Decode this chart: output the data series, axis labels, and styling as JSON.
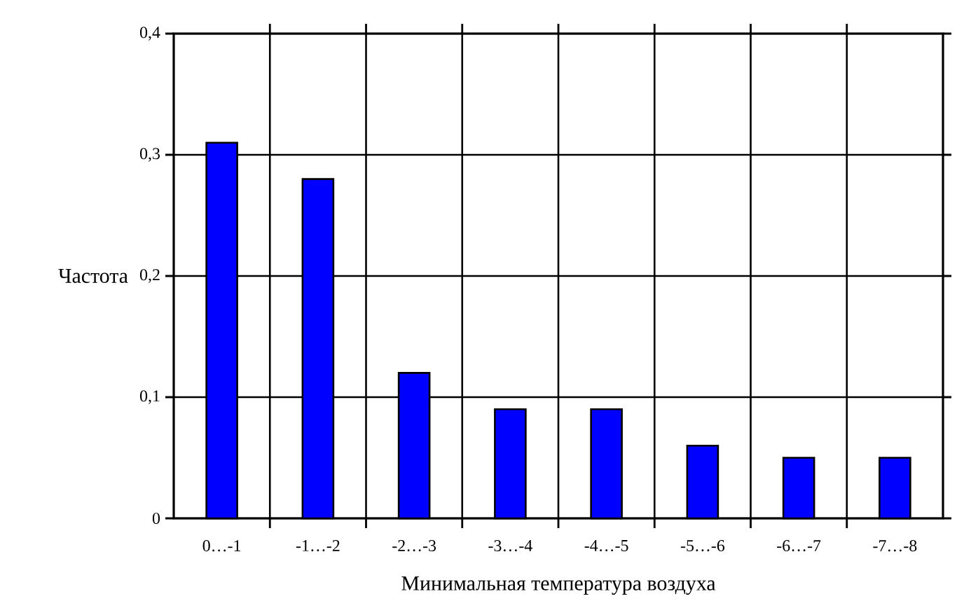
{
  "chart_data": {
    "type": "bar",
    "xlabel": "Минимальная температура воздуха",
    "ylabel": "Частота",
    "categories": [
      "0…-1",
      "-1…-2",
      "-2…-3",
      "-3…-4",
      "-4…-5",
      "-5…-6",
      "-6…-7",
      "-7…-8"
    ],
    "values": [
      0.31,
      0.28,
      0.12,
      0.09,
      0.09,
      0.06,
      0.05,
      0.05
    ],
    "color": "#0000ff",
    "ylim": [
      0,
      0.4
    ],
    "yticks": [
      0,
      {
        "value": 0.1,
        "label": "0,1"
      },
      {
        "value": 0.2,
        "label": "0,2"
      },
      {
        "value": 0.3,
        "label": "0,3"
      },
      {
        "value": 0.4,
        "label": "0,4"
      }
    ],
    "grid": true
  }
}
